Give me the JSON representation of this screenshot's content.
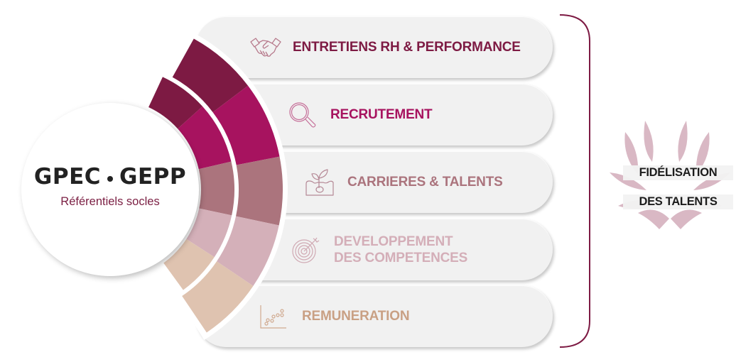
{
  "center": {
    "title_left": "GPEC",
    "title_right": "GEPP",
    "subtitle": "Référentiels socles"
  },
  "items": [
    {
      "label": "ENTRETIENS RH & PERFORMANCE",
      "icon": "handshake-icon",
      "color": "#7d1a43"
    },
    {
      "label": "RECRUTEMENT",
      "icon": "magnifier-icon",
      "color": "#a7135f"
    },
    {
      "label": "CARRIERES & TALENTS",
      "icon": "sprout-icon",
      "color": "#ab747d"
    },
    {
      "label_line1": "DEVELOPPEMENT",
      "label_line2": "DES COMPETENCES",
      "icon": "target-icon",
      "color": "#d4b0b9"
    },
    {
      "label": "REMUNERATION",
      "icon": "scatter-chart-icon",
      "color": "#c9a084"
    }
  ],
  "ring_colors": [
    "#7d1a43",
    "#a7135f",
    "#ab747d",
    "#d4b0b9",
    "#dfc3b0"
  ],
  "bracket_color": "#7d1a43",
  "outcome": {
    "line1": "FIDÉLISATION",
    "line2": "DES TALENTS",
    "emblem": "laurel-icon",
    "emblem_color": "#d9b8c4"
  }
}
